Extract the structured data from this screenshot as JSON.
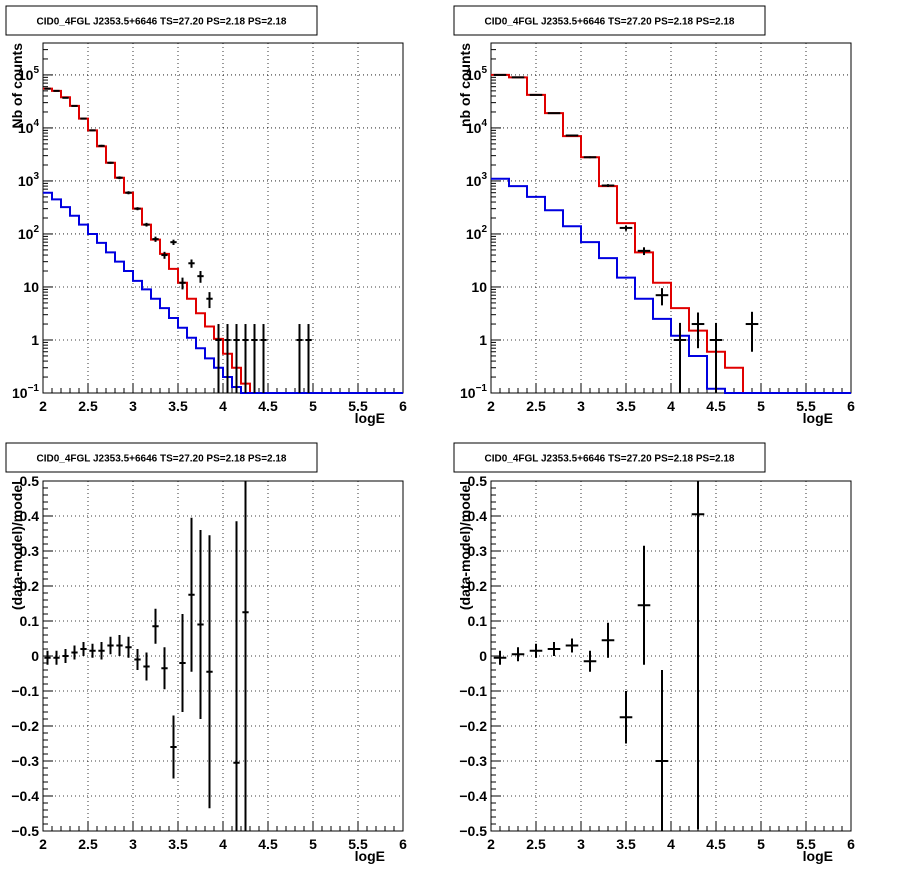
{
  "chart_data": [
    {
      "type": "line",
      "title": "CID0_4FGL J2353.5+6646 TS=27.20 PS=2.18 PS=2.18",
      "xlabel": "logE",
      "ylabel": "Nb of counts",
      "xlim": [
        2,
        6
      ],
      "ylim": [
        0.1,
        400000
      ],
      "yscale": "log",
      "grid": true,
      "x_ticks": [
        "2",
        "2.5",
        "3",
        "3.5",
        "4",
        "4.5",
        "5",
        "5.5",
        "6"
      ],
      "y_ticks": [
        {
          "v": 0.1,
          "base": "10",
          "exp": "−1"
        },
        {
          "v": 1,
          "base": "1",
          "exp": ""
        },
        {
          "v": 10,
          "base": "10",
          "exp": ""
        },
        {
          "v": 100,
          "base": "10",
          "exp": "2"
        },
        {
          "v": 1000,
          "base": "10",
          "exp": "3"
        },
        {
          "v": 10000,
          "base": "10",
          "exp": "4"
        },
        {
          "v": 100000,
          "base": "10",
          "exp": "5"
        }
      ],
      "bin_edges": [
        2.0,
        2.1,
        2.2,
        2.3,
        2.4,
        2.5,
        2.6,
        2.7,
        2.8,
        2.9,
        3.0,
        3.1,
        3.2,
        3.3,
        3.4,
        3.5,
        3.6,
        3.7,
        3.8,
        3.9,
        4.0,
        4.1,
        4.2,
        4.3,
        4.4,
        4.5,
        4.6,
        4.7,
        4.8,
        4.9,
        5.0,
        5.1,
        5.2,
        5.3,
        5.4,
        5.5,
        5.6,
        5.7,
        5.8,
        5.9,
        6.0
      ],
      "series": [
        {
          "color": "#e00000",
          "values": [
            55000,
            50000,
            38000,
            26000,
            15000,
            9000,
            4500,
            2200,
            1150,
            600,
            300,
            150,
            78,
            42,
            22,
            12,
            6,
            3.2,
            1.8,
            1.05,
            0.55,
            0.3,
            0.15,
            0.1,
            0.1,
            0.1,
            0.1,
            0.1,
            0.1,
            0.1,
            0.1,
            0.1,
            0.1,
            0.1,
            0.1,
            0.1,
            0.1,
            0.1,
            0.1,
            0.1
          ]
        },
        {
          "color": "#0000e0",
          "values": [
            600,
            450,
            320,
            220,
            150,
            100,
            68,
            45,
            30,
            20,
            13,
            9,
            6,
            4,
            2.6,
            1.7,
            1.1,
            0.7,
            0.45,
            0.3,
            0.2,
            0.13,
            0.1,
            0.1,
            0.1,
            0.1,
            0.1,
            0.1,
            0.1,
            0.1,
            0.1,
            0.1,
            0.1,
            0.1,
            0.1,
            0.1,
            0.1,
            0.1,
            0.1,
            0.1
          ]
        }
      ],
      "points": [
        {
          "x": 2.05,
          "y": 55000,
          "lo": 54000,
          "hi": 56000
        },
        {
          "x": 2.15,
          "y": 50000,
          "lo": 49000,
          "hi": 51000
        },
        {
          "x": 2.25,
          "y": 37000,
          "lo": 36200,
          "hi": 37800
        },
        {
          "x": 2.35,
          "y": 26000,
          "lo": 25300,
          "hi": 26700
        },
        {
          "x": 2.45,
          "y": 15000,
          "lo": 14500,
          "hi": 15500
        },
        {
          "x": 2.55,
          "y": 9000,
          "lo": 8700,
          "hi": 9300
        },
        {
          "x": 2.65,
          "y": 4600,
          "lo": 4400,
          "hi": 4800
        },
        {
          "x": 2.75,
          "y": 2200,
          "lo": 2100,
          "hi": 2300
        },
        {
          "x": 2.85,
          "y": 1150,
          "lo": 1080,
          "hi": 1220
        },
        {
          "x": 2.95,
          "y": 600,
          "lo": 560,
          "hi": 640
        },
        {
          "x": 3.05,
          "y": 300,
          "lo": 280,
          "hi": 320
        },
        {
          "x": 3.15,
          "y": 150,
          "lo": 138,
          "hi": 162
        },
        {
          "x": 3.25,
          "y": 80,
          "lo": 71,
          "hi": 89
        },
        {
          "x": 3.35,
          "y": 40,
          "lo": 34,
          "hi": 46
        },
        {
          "x": 3.45,
          "y": 70,
          "lo": 62,
          "hi": 78
        },
        {
          "x": 3.55,
          "y": 12,
          "lo": 9,
          "hi": 15
        },
        {
          "x": 3.65,
          "y": 28,
          "lo": 23,
          "hi": 33
        },
        {
          "x": 3.75,
          "y": 16,
          "lo": 12,
          "hi": 20
        },
        {
          "x": 3.85,
          "y": 6,
          "lo": 4,
          "hi": 8
        },
        {
          "x": 3.95,
          "y": 1,
          "lo": 0.1,
          "hi": 2
        },
        {
          "x": 4.05,
          "y": 1,
          "lo": 0.1,
          "hi": 2
        },
        {
          "x": 4.15,
          "y": 1,
          "lo": 0.1,
          "hi": 2
        },
        {
          "x": 4.25,
          "y": 1,
          "lo": 0.1,
          "hi": 2
        },
        {
          "x": 4.35,
          "y": 1,
          "lo": 0.1,
          "hi": 2
        },
        {
          "x": 4.45,
          "y": 1,
          "lo": 0.1,
          "hi": 2
        },
        {
          "x": 4.85,
          "y": 1,
          "lo": 0.1,
          "hi": 2
        },
        {
          "x": 4.95,
          "y": 1,
          "lo": 0.1,
          "hi": 2
        }
      ]
    },
    {
      "type": "line",
      "title": "CID0_4FGL J2353.5+6646 TS=27.20 PS=2.18 PS=2.18",
      "xlabel": "logE",
      "ylabel": "nb of counts",
      "xlim": [
        2,
        6
      ],
      "ylim": [
        0.1,
        400000
      ],
      "yscale": "log",
      "grid": true,
      "x_ticks": [
        "2",
        "2.5",
        "3",
        "3.5",
        "4",
        "4.5",
        "5",
        "5.5",
        "6"
      ],
      "y_ticks": [
        {
          "v": 0.1,
          "base": "10",
          "exp": "−1"
        },
        {
          "v": 1,
          "base": "1",
          "exp": ""
        },
        {
          "v": 10,
          "base": "10",
          "exp": ""
        },
        {
          "v": 100,
          "base": "10",
          "exp": "2"
        },
        {
          "v": 1000,
          "base": "10",
          "exp": "3"
        },
        {
          "v": 10000,
          "base": "10",
          "exp": "4"
        },
        {
          "v": 100000,
          "base": "10",
          "exp": "5"
        }
      ],
      "bin_edges": [
        2.0,
        2.2,
        2.4,
        2.6,
        2.8,
        3.0,
        3.2,
        3.4,
        3.6,
        3.8,
        4.0,
        4.2,
        4.4,
        4.6,
        4.8,
        5.0,
        5.2,
        5.4,
        5.6,
        5.8,
        6.0
      ],
      "series": [
        {
          "color": "#e00000",
          "values": [
            100000,
            90000,
            42000,
            19000,
            7000,
            2800,
            800,
            160,
            45,
            12,
            4,
            1.5,
            0.6,
            0.3,
            0.1,
            0.1,
            0.1,
            0.1,
            0.1,
            0.1
          ]
        },
        {
          "color": "#0000e0",
          "values": [
            1100,
            800,
            500,
            280,
            140,
            70,
            35,
            15,
            6,
            2.5,
            1.2,
            0.5,
            0.12,
            0.1,
            0.1,
            0.1,
            0.1,
            0.1,
            0.1,
            0.1
          ]
        }
      ],
      "points": [
        {
          "x": 2.1,
          "y": 100000,
          "lo": 98000,
          "hi": 102000
        },
        {
          "x": 2.3,
          "y": 90000,
          "lo": 88000,
          "hi": 92000
        },
        {
          "x": 2.5,
          "y": 42000,
          "lo": 41000,
          "hi": 43000
        },
        {
          "x": 2.7,
          "y": 19000,
          "lo": 18500,
          "hi": 19500
        },
        {
          "x": 2.9,
          "y": 7200,
          "lo": 6950,
          "hi": 7450
        },
        {
          "x": 3.1,
          "y": 2800,
          "lo": 2690,
          "hi": 2910
        },
        {
          "x": 3.3,
          "y": 820,
          "lo": 770,
          "hi": 870
        },
        {
          "x": 3.5,
          "y": 130,
          "lo": 115,
          "hi": 145
        },
        {
          "x": 3.7,
          "y": 48,
          "lo": 40,
          "hi": 56
        },
        {
          "x": 3.9,
          "y": 7,
          "lo": 4.5,
          "hi": 9.5
        },
        {
          "x": 4.1,
          "y": 1,
          "lo": 0.1,
          "hi": 2.1
        },
        {
          "x": 4.3,
          "y": 2,
          "lo": 0.7,
          "hi": 3.3
        },
        {
          "x": 4.5,
          "y": 1,
          "lo": 0.1,
          "hi": 2.1
        },
        {
          "x": 4.9,
          "y": 2,
          "lo": 0.6,
          "hi": 3.4
        }
      ]
    },
    {
      "type": "scatter",
      "title": "CID0_4FGL J2353.5+6646 TS=27.20 PS=2.18 PS=2.18",
      "xlabel": "logE",
      "ylabel": "(data-model)/model",
      "xlim": [
        2,
        6
      ],
      "ylim": [
        -0.5,
        0.5
      ],
      "grid": true,
      "x_ticks": [
        "2",
        "2.5",
        "3",
        "3.5",
        "4",
        "4.5",
        "5",
        "5.5",
        "6"
      ],
      "y_ticks": [
        "−0.5",
        "−0.4",
        "−0.3",
        "−0.2",
        "−0.1",
        "0",
        "0.1",
        "0.2",
        "0.3",
        "0.4",
        "0.5"
      ],
      "points": [
        {
          "x": 2.05,
          "y": -0.005,
          "e": 0.02
        },
        {
          "x": 2.15,
          "y": -0.005,
          "e": 0.02
        },
        {
          "x": 2.25,
          "y": 0.0,
          "e": 0.02
        },
        {
          "x": 2.35,
          "y": 0.01,
          "e": 0.02
        },
        {
          "x": 2.45,
          "y": 0.02,
          "e": 0.02
        },
        {
          "x": 2.55,
          "y": 0.015,
          "e": 0.02
        },
        {
          "x": 2.65,
          "y": 0.015,
          "e": 0.025
        },
        {
          "x": 2.75,
          "y": 0.03,
          "e": 0.025
        },
        {
          "x": 2.85,
          "y": 0.03,
          "e": 0.03
        },
        {
          "x": 2.95,
          "y": 0.025,
          "e": 0.03
        },
        {
          "x": 3.05,
          "y": -0.01,
          "e": 0.03
        },
        {
          "x": 3.15,
          "y": -0.03,
          "e": 0.04
        },
        {
          "x": 3.25,
          "y": 0.085,
          "e": 0.05
        },
        {
          "x": 3.35,
          "y": -0.035,
          "e": 0.06
        },
        {
          "x": 3.45,
          "y": -0.26,
          "e": 0.09
        },
        {
          "x": 3.55,
          "y": -0.02,
          "e": 0.14
        },
        {
          "x": 3.65,
          "y": 0.175,
          "e": 0.22
        },
        {
          "x": 3.75,
          "y": 0.09,
          "e": 0.27
        },
        {
          "x": 3.85,
          "y": -0.045,
          "e": 0.39
        },
        {
          "x": 4.15,
          "y": -0.305,
          "e": 0.69
        },
        {
          "x": 4.25,
          "y": 0.125,
          "e": 0.9
        }
      ]
    },
    {
      "type": "scatter",
      "title": "CID0_4FGL J2353.5+6646 TS=27.20 PS=2.18 PS=2.18",
      "xlabel": "logE",
      "ylabel": "(data-model)/model",
      "xlim": [
        2,
        6
      ],
      "ylim": [
        -0.5,
        0.5
      ],
      "grid": true,
      "x_ticks": [
        "2",
        "2.5",
        "3",
        "3.5",
        "4",
        "4.5",
        "5",
        "5.5",
        "6"
      ],
      "y_ticks": [
        "−0.5",
        "−0.4",
        "−0.3",
        "−0.2",
        "−0.1",
        "0",
        "0.1",
        "0.2",
        "0.3",
        "0.4",
        "0.5"
      ],
      "points": [
        {
          "x": 2.1,
          "y": -0.005,
          "e": 0.02
        },
        {
          "x": 2.3,
          "y": 0.005,
          "e": 0.02
        },
        {
          "x": 2.5,
          "y": 0.015,
          "e": 0.02
        },
        {
          "x": 2.7,
          "y": 0.02,
          "e": 0.02
        },
        {
          "x": 2.9,
          "y": 0.03,
          "e": 0.02
        },
        {
          "x": 3.1,
          "y": -0.015,
          "e": 0.03
        },
        {
          "x": 3.3,
          "y": 0.045,
          "e": 0.05
        },
        {
          "x": 3.5,
          "y": -0.175,
          "e": 0.075
        },
        {
          "x": 3.7,
          "y": 0.145,
          "e": 0.17
        },
        {
          "x": 3.9,
          "y": -0.3,
          "e": 0.26
        },
        {
          "x": 4.3,
          "y": 0.405,
          "e": 0.9
        }
      ]
    }
  ]
}
